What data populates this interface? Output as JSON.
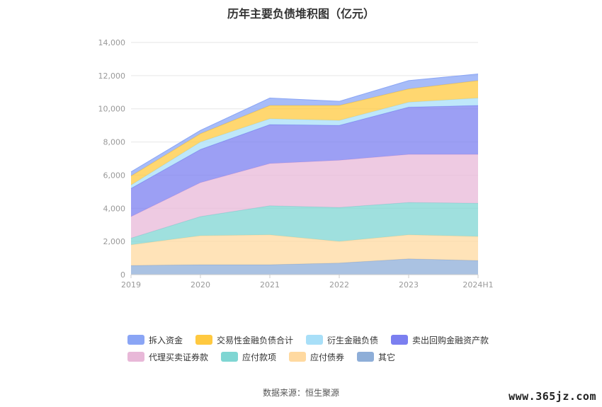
{
  "title": "历年主要负债堆积图（亿元）",
  "source": "数据来源：恒生聚源",
  "watermark": "www.365jz.com",
  "chart_data": {
    "type": "area",
    "stacked": true,
    "categories": [
      "2019",
      "2020",
      "2021",
      "2022",
      "2023",
      "2024H1"
    ],
    "ylim": [
      0,
      14000
    ],
    "yticks": [
      0,
      2000,
      4000,
      6000,
      8000,
      10000,
      12000,
      14000
    ],
    "ytick_labels": [
      "0",
      "2,000",
      "4,000",
      "6,000",
      "8,000",
      "10,000",
      "12,000",
      "14,000"
    ],
    "grid": true,
    "legend_position": "bottom",
    "series": [
      {
        "name": "其它",
        "color": "#8eaed8",
        "values": [
          550,
          600,
          600,
          700,
          950,
          850
        ]
      },
      {
        "name": "应付债券",
        "color": "#ffd9a0",
        "values": [
          1250,
          1750,
          1800,
          1300,
          1450,
          1450
        ]
      },
      {
        "name": "应付款项",
        "color": "#7fd6d3",
        "values": [
          400,
          1150,
          1750,
          2050,
          1950,
          2000
        ]
      },
      {
        "name": "代理买卖证券款",
        "color": "#e8b8d8",
        "values": [
          1300,
          2050,
          2550,
          2850,
          2900,
          2950
        ]
      },
      {
        "name": "卖出回购金融资产款",
        "color": "#7b7ff0",
        "values": [
          1700,
          2000,
          2350,
          2100,
          2850,
          2950
        ]
      },
      {
        "name": "衍生金融负债",
        "color": "#a8dff8",
        "values": [
          200,
          450,
          350,
          300,
          300,
          450
        ]
      },
      {
        "name": "交易性金融负债合计",
        "color": "#ffc940",
        "values": [
          550,
          500,
          800,
          900,
          800,
          1050
        ]
      },
      {
        "name": "拆入资金",
        "color": "#8aa5f5",
        "values": [
          250,
          200,
          450,
          250,
          500,
          400
        ]
      }
    ],
    "legend_order": [
      "拆入资金",
      "交易性金融负债合计",
      "衍生金融负债",
      "卖出回购金融资产款",
      "代理买卖证券款",
      "应付款项",
      "应付债券",
      "其它"
    ]
  }
}
